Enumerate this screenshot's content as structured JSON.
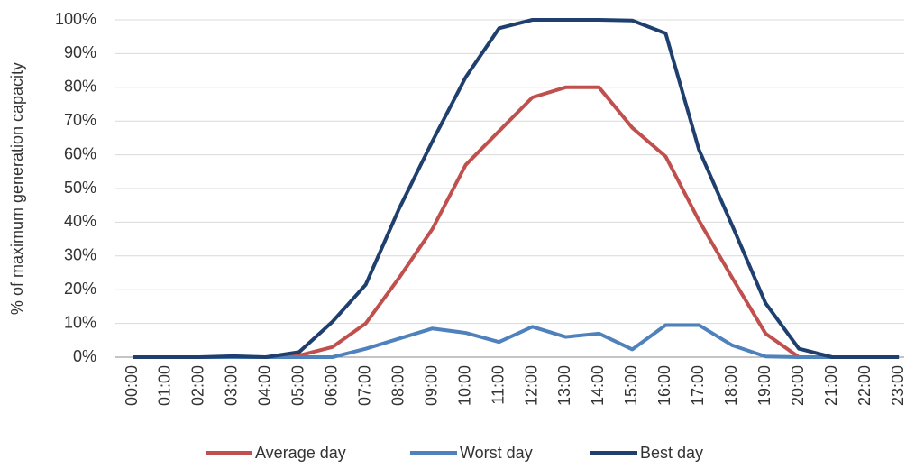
{
  "chart_data": {
    "type": "line",
    "y_label": "% of maximum generation capacity",
    "categories": [
      "00:00",
      "01:00",
      "02:00",
      "03:00",
      "04:00",
      "05:00",
      "06:00",
      "07:00",
      "08:00",
      "09:00",
      "10:00",
      "11:00",
      "12:00",
      "13:00",
      "14:00",
      "15:00",
      "16:00",
      "17:00",
      "18:00",
      "19:00",
      "20:00",
      "21:00",
      "22:00",
      "23:00"
    ],
    "series": [
      {
        "name": "Average day",
        "color": "#c0504d",
        "values": [
          0,
          0,
          0,
          0,
          0,
          0.5,
          3,
          10,
          23.5,
          38,
          57,
          67,
          77,
          80,
          80,
          68,
          59.5,
          40.5,
          23.5,
          7,
          0,
          0,
          0,
          0
        ]
      },
      {
        "name": "Worst day",
        "color": "#4f81bd",
        "values": [
          0,
          0,
          0,
          0,
          0,
          0,
          0,
          2.5,
          5.5,
          8.5,
          7.2,
          4.5,
          9,
          6,
          7,
          2.3,
          9.5,
          9.5,
          3.5,
          0.2,
          0,
          0,
          0,
          0
        ]
      },
      {
        "name": "Best day",
        "color": "#1f3f6e",
        "values": [
          0,
          0,
          0,
          0.3,
          0,
          1.5,
          10.5,
          21.5,
          44,
          64,
          83,
          97.5,
          100,
          100,
          100,
          99.8,
          96,
          61.5,
          39,
          16,
          2.5,
          0,
          0,
          0
        ]
      }
    ],
    "ylim": [
      0,
      100
    ],
    "yticks": [
      {
        "value": 0,
        "label": "0%"
      },
      {
        "value": 10,
        "label": "10%"
      },
      {
        "value": 20,
        "label": "20%"
      },
      {
        "value": 30,
        "label": "30%"
      },
      {
        "value": 40,
        "label": "40%"
      },
      {
        "value": 50,
        "label": "50%"
      },
      {
        "value": 60,
        "label": "60%"
      },
      {
        "value": 70,
        "label": "70%"
      },
      {
        "value": 80,
        "label": "80%"
      },
      {
        "value": 90,
        "label": "90%"
      },
      {
        "value": 100,
        "label": "100%"
      }
    ],
    "grid": true
  }
}
